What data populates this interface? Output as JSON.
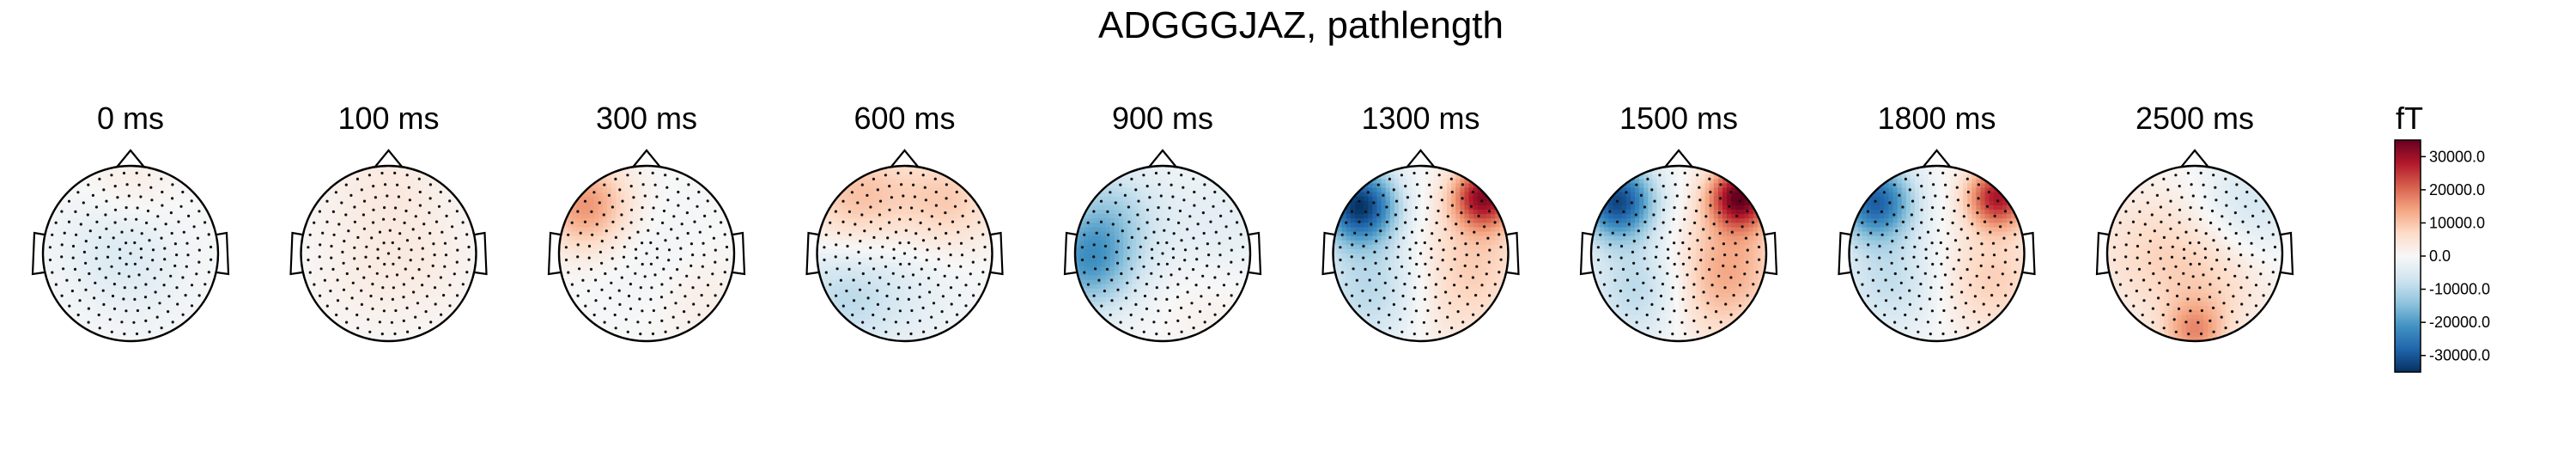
{
  "chart_data": {
    "type": "heatmap",
    "title": "ADGGGJAZ, pathlength",
    "panels": [
      {
        "label": "0 ms",
        "hotspots": [
          [
            -0.2,
            -0.05,
            -0.12,
            0.45
          ],
          [
            0.2,
            0.35,
            -0.05,
            0.4
          ],
          [
            0.0,
            -0.8,
            0.08,
            0.35
          ]
        ]
      },
      {
        "label": "100 ms",
        "hotspots": [
          [
            0.0,
            -0.7,
            0.1,
            0.5
          ],
          [
            -0.3,
            0.3,
            0.05,
            0.4
          ],
          [
            0.4,
            0.2,
            0.06,
            0.4
          ]
        ]
      },
      {
        "label": "300 ms",
        "hotspots": [
          [
            -0.7,
            -0.55,
            0.45,
            0.35
          ],
          [
            0.1,
            0.1,
            -0.05,
            0.5
          ],
          [
            0.6,
            0.5,
            0.08,
            0.4
          ]
        ]
      },
      {
        "label": "600 ms",
        "hotspots": [
          [
            -0.55,
            -0.65,
            0.3,
            0.45
          ],
          [
            0.5,
            -0.6,
            0.25,
            0.4
          ],
          [
            -0.7,
            0.5,
            -0.25,
            0.45
          ],
          [
            0.1,
            0.4,
            -0.08,
            0.5
          ]
        ]
      },
      {
        "label": "900 ms",
        "hotspots": [
          [
            -0.85,
            0.1,
            -0.55,
            0.4
          ],
          [
            -0.6,
            -0.5,
            -0.25,
            0.4
          ],
          [
            0.6,
            -0.3,
            -0.1,
            0.5
          ],
          [
            0.5,
            0.6,
            0.05,
            0.4
          ]
        ]
      },
      {
        "label": "1300 ms",
        "hotspots": [
          [
            -0.7,
            -0.55,
            -0.95,
            0.3
          ],
          [
            0.72,
            -0.65,
            0.85,
            0.25
          ],
          [
            0.55,
            0.1,
            0.25,
            0.5
          ],
          [
            -0.5,
            0.4,
            -0.3,
            0.5
          ],
          [
            0.2,
            0.7,
            0.1,
            0.4
          ]
        ]
      },
      {
        "label": "1500 ms",
        "hotspots": [
          [
            -0.7,
            -0.6,
            -0.9,
            0.3
          ],
          [
            0.7,
            -0.65,
            0.95,
            0.25
          ],
          [
            0.55,
            0.1,
            0.35,
            0.45
          ],
          [
            -0.4,
            0.4,
            -0.3,
            0.45
          ],
          [
            0.3,
            0.6,
            0.15,
            0.4
          ]
        ]
      },
      {
        "label": "1800 ms",
        "hotspots": [
          [
            -0.7,
            -0.6,
            -0.8,
            0.3
          ],
          [
            0.7,
            -0.65,
            0.8,
            0.25
          ],
          [
            0.6,
            0.3,
            0.25,
            0.45
          ],
          [
            -0.5,
            0.3,
            -0.25,
            0.45
          ]
        ]
      },
      {
        "label": "2500 ms",
        "hotspots": [
          [
            -0.4,
            0.0,
            0.2,
            0.55
          ],
          [
            0.6,
            -0.5,
            -0.2,
            0.45
          ],
          [
            0.0,
            0.9,
            0.4,
            0.25
          ],
          [
            0.3,
            0.3,
            0.15,
            0.45
          ]
        ]
      }
    ],
    "colorbar": {
      "unit": "fT",
      "range": [
        -35000,
        35000
      ],
      "ticks": [
        30000,
        20000,
        10000,
        0,
        -10000,
        -20000,
        -30000
      ],
      "tick_labels": [
        "30000.0",
        "20000.0",
        "10000.0",
        "0.0",
        "-10000.0",
        "-20000.0",
        "-30000.0"
      ],
      "colormap": [
        "#053061",
        "#2166ac",
        "#4393c3",
        "#92c5de",
        "#d1e5f0",
        "#f7f7f7",
        "#fddbc7",
        "#f4a582",
        "#d6604d",
        "#b2182b",
        "#67001f"
      ]
    }
  }
}
